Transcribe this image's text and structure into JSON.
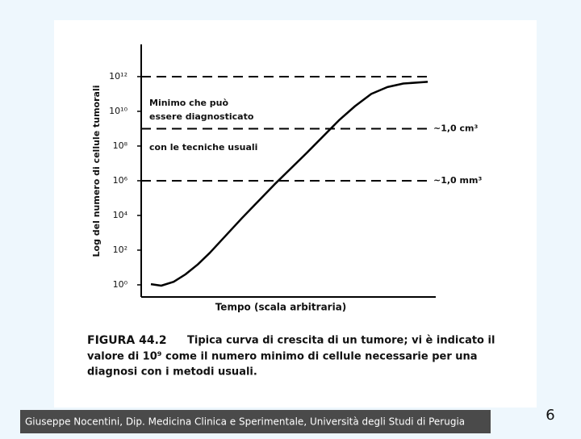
{
  "chart_data": {
    "type": "line",
    "ylabel": "Log del numero di cellule tumorali",
    "xlabel": "Tempo (scala arbitraria)",
    "log_y": true,
    "color": "#000000",
    "xlim": [
      0,
      100
    ],
    "ylim": [
      0.2,
      72000000000000
    ],
    "yticks": [
      {
        "value": 1,
        "label": "10⁰"
      },
      {
        "value": 100,
        "label": "10²"
      },
      {
        "value": 10000,
        "label": "10⁴"
      },
      {
        "value": 1000000,
        "label": "10⁶"
      },
      {
        "value": 100000000,
        "label": "10⁸"
      },
      {
        "value": 10000000000,
        "label": "10¹⁰"
      },
      {
        "value": 1000000000000,
        "label": "10¹²"
      }
    ],
    "x": [
      3.3,
      6.8,
      11,
      15,
      19.2,
      23.3,
      34.2,
      45.2,
      56.2,
      67.1,
      72.6,
      78.1,
      83.6,
      89,
      97.3
    ],
    "values": [
      1.1,
      0.9,
      1.5,
      4,
      15,
      70,
      7000,
      600000,
      40000000,
      3000000000,
      20000000000,
      100000000000,
      250000000000,
      400000000000,
      500000000000
    ],
    "reference_lines": [
      {
        "value": 1000000000000
      },
      {
        "value": 1000000000,
        "label": "~1,0 cm³"
      },
      {
        "value": 1000000,
        "label": "~1,0 mm³"
      }
    ],
    "annotation": [
      "Minimo che può",
      "essere diagnosticato",
      "con le tecniche usuali"
    ]
  },
  "caption": {
    "label": "FIGURA 44.2",
    "lines": [
      "Tipica curva di crescita di un tumore; vi è indicato il",
      "valore di 10⁹  come il numero  minimo di cellule necessarie per una",
      "diagnosi con i metodi usuali."
    ]
  },
  "footer": "Giuseppe Nocentini, Dip. Medicina Clinica e Sperimentale, Università degli Studi di Perugia",
  "page_number": "6"
}
